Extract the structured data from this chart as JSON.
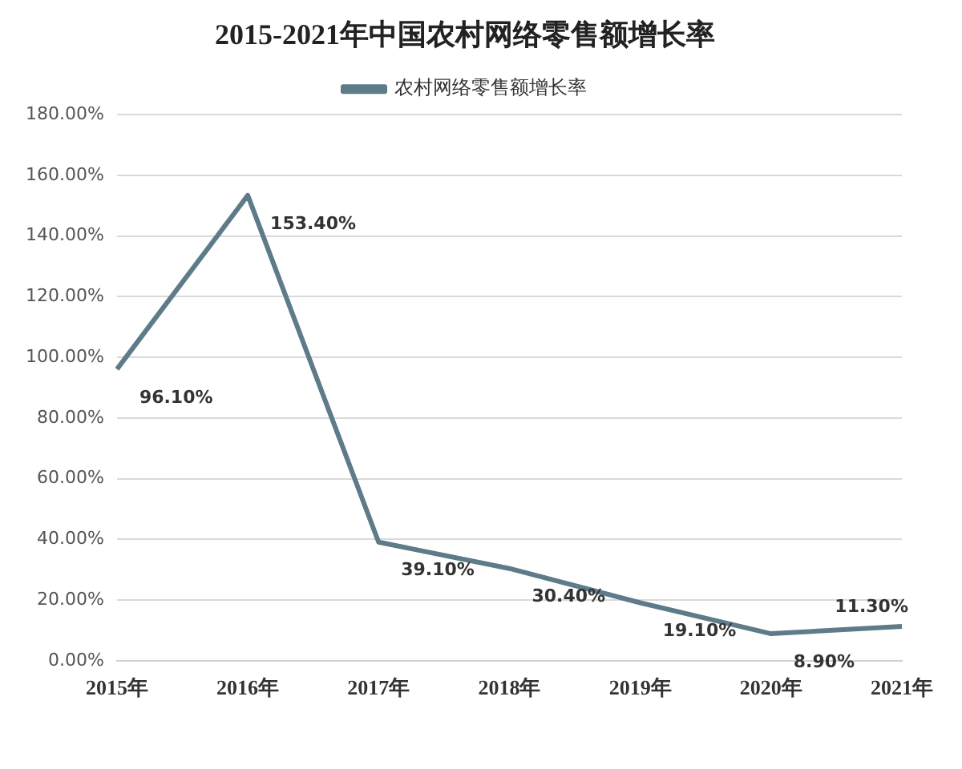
{
  "chart_data": {
    "type": "line",
    "title": "2015-2021年中国农村网络零售额增长率",
    "categories": [
      "2015年",
      "2016年",
      "2017年",
      "2018年",
      "2019年",
      "2020年",
      "2021年"
    ],
    "series": [
      {
        "name": "农村网络零售额增长率",
        "color": "#5d7b89",
        "values": [
          96.1,
          153.4,
          39.1,
          30.4,
          19.1,
          8.9,
          11.3
        ],
        "value_labels": [
          "96.10%",
          "153.40%",
          "39.10%",
          "30.40%",
          "19.10%",
          "8.90%",
          "11.30%"
        ]
      }
    ],
    "ylim": [
      0,
      180
    ],
    "yticks": [
      {
        "value": 0,
        "label": "0.00%"
      },
      {
        "value": 20,
        "label": "20.00%"
      },
      {
        "value": 40,
        "label": "40.00%"
      },
      {
        "value": 60,
        "label": "60.00%"
      },
      {
        "value": 80,
        "label": "80.00%"
      },
      {
        "value": 100,
        "label": "100.00%"
      },
      {
        "value": 120,
        "label": "120.00%"
      },
      {
        "value": 140,
        "label": "140.00%"
      },
      {
        "value": 160,
        "label": "160.00%"
      },
      {
        "value": 180,
        "label": "180.00%"
      }
    ],
    "grid": "y",
    "legend": "top",
    "marker": "none",
    "line_style": "solid"
  }
}
